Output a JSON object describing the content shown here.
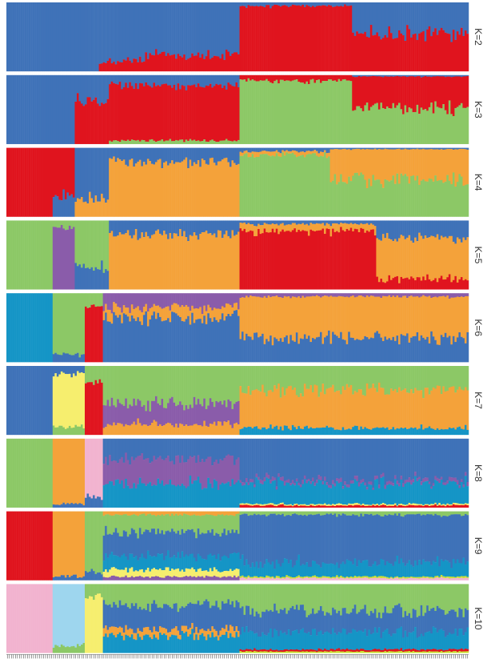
{
  "chart_data": {
    "type": "stacked-bar",
    "title": "",
    "xlabel": "",
    "ylabel": "",
    "ylim": [
      0,
      1
    ],
    "n_individuals": 230,
    "orientation": "vertical stacked bars, panels stacked top to bottom",
    "panels": [
      {
        "label": "K=2",
        "components": [
          "blue",
          "red"
        ],
        "segments": [
          {
            "from": 0,
            "to": 0.2,
            "q": [
              1.0,
              0.0
            ]
          },
          {
            "from": 0.2,
            "to": 0.3,
            "q": [
              0.85,
              0.15
            ]
          },
          {
            "from": 0.3,
            "to": 0.505,
            "q": [
              0.78,
              0.22
            ]
          },
          {
            "from": 0.505,
            "to": 0.75,
            "q": [
              0.05,
              0.95
            ]
          },
          {
            "from": 0.75,
            "to": 1.0,
            "q": [
              0.45,
              0.55
            ]
          }
        ]
      },
      {
        "label": "K=3",
        "components": [
          "blue",
          "red",
          "green"
        ],
        "segments": [
          {
            "from": 0,
            "to": 0.15,
            "q": [
              1.0,
              0.0,
              0.0
            ]
          },
          {
            "from": 0.15,
            "to": 0.22,
            "q": [
              0.35,
              0.65,
              0.0
            ]
          },
          {
            "from": 0.22,
            "to": 0.505,
            "q": [
              0.15,
              0.8,
              0.05
            ]
          },
          {
            "from": 0.505,
            "to": 0.75,
            "q": [
              0.0,
              0.08,
              0.92
            ]
          },
          {
            "from": 0.75,
            "to": 1.0,
            "q": [
              0.02,
              0.45,
              0.53
            ]
          }
        ]
      },
      {
        "label": "K=4",
        "components": [
          "red",
          "blue",
          "orange",
          "green"
        ],
        "segments": [
          {
            "from": 0,
            "to": 0.1,
            "q": [
              1.0,
              0.0,
              0.0,
              0.0
            ]
          },
          {
            "from": 0.1,
            "to": 0.15,
            "q": [
              0.7,
              0.3,
              0.0,
              0.0
            ]
          },
          {
            "from": 0.15,
            "to": 0.22,
            "q": [
              0.0,
              0.75,
              0.25,
              0.0
            ]
          },
          {
            "from": 0.22,
            "to": 0.505,
            "q": [
              0.0,
              0.2,
              0.8,
              0.0
            ]
          },
          {
            "from": 0.505,
            "to": 0.7,
            "q": [
              0.0,
              0.05,
              0.05,
              0.9
            ]
          },
          {
            "from": 0.7,
            "to": 1.0,
            "q": [
              0.0,
              0.02,
              0.45,
              0.53
            ]
          }
        ]
      },
      {
        "label": "K=5",
        "components": [
          "green",
          "purple",
          "blue",
          "orange",
          "red"
        ],
        "segments": [
          {
            "from": 0,
            "to": 0.1,
            "q": [
              1.0,
              0.0,
              0.0,
              0.0,
              0.0
            ]
          },
          {
            "from": 0.1,
            "to": 0.15,
            "q": [
              0.1,
              0.9,
              0.0,
              0.0,
              0.0
            ]
          },
          {
            "from": 0.15,
            "to": 0.22,
            "q": [
              0.7,
              0.0,
              0.3,
              0.0,
              0.0
            ]
          },
          {
            "from": 0.22,
            "to": 0.505,
            "q": [
              0.0,
              0.0,
              0.2,
              0.8,
              0.0
            ]
          },
          {
            "from": 0.505,
            "to": 0.8,
            "q": [
              0.0,
              0.0,
              0.05,
              0.1,
              0.85
            ]
          },
          {
            "from": 0.8,
            "to": 1.0,
            "q": [
              0.0,
              0.0,
              0.25,
              0.6,
              0.15
            ]
          }
        ]
      },
      {
        "label": "K=6",
        "components": [
          "teal",
          "green",
          "red",
          "purple",
          "orange",
          "blue"
        ],
        "segments": [
          {
            "from": 0,
            "to": 0.1,
            "q": [
              1.0,
              0.0,
              0.0,
              0.0,
              0.0,
              0.0
            ]
          },
          {
            "from": 0.1,
            "to": 0.17,
            "q": [
              0.0,
              0.9,
              0.0,
              0.0,
              0.0,
              0.1
            ]
          },
          {
            "from": 0.17,
            "to": 0.21,
            "q": [
              0.0,
              0.2,
              0.8,
              0.0,
              0.0,
              0.0
            ]
          },
          {
            "from": 0.21,
            "to": 0.505,
            "q": [
              0.0,
              0.0,
              0.0,
              0.2,
              0.15,
              0.65
            ]
          },
          {
            "from": 0.505,
            "to": 1.0,
            "q": [
              0.0,
              0.0,
              0.0,
              0.05,
              0.6,
              0.35
            ]
          }
        ]
      },
      {
        "label": "K=7",
        "components": [
          "blue",
          "yellow",
          "green",
          "red",
          "purple",
          "orange",
          "teal"
        ],
        "segments": [
          {
            "from": 0,
            "to": 0.1,
            "q": [
              1.0,
              0.0,
              0.0,
              0.0,
              0.0,
              0.0,
              0.0
            ]
          },
          {
            "from": 0.1,
            "to": 0.17,
            "q": [
              0.1,
              0.8,
              0.1,
              0.0,
              0.0,
              0.0,
              0.0
            ]
          },
          {
            "from": 0.17,
            "to": 0.21,
            "q": [
              0.0,
              0.0,
              0.2,
              0.8,
              0.0,
              0.0,
              0.0
            ]
          },
          {
            "from": 0.21,
            "to": 0.505,
            "q": [
              0.0,
              0.0,
              0.55,
              0.0,
              0.3,
              0.15,
              0.0
            ]
          },
          {
            "from": 0.505,
            "to": 1.0,
            "q": [
              0.0,
              0.0,
              0.35,
              0.0,
              0.0,
              0.55,
              0.1
            ]
          }
        ]
      },
      {
        "label": "K=8",
        "components": [
          "green",
          "orange",
          "pink",
          "blue",
          "purple",
          "teal",
          "yellow",
          "red"
        ],
        "segments": [
          {
            "from": 0,
            "to": 0.1,
            "q": [
              1.0,
              0.0,
              0.0,
              0.0,
              0.0,
              0.0,
              0.0,
              0.0
            ]
          },
          {
            "from": 0.1,
            "to": 0.17,
            "q": [
              0.0,
              0.95,
              0.0,
              0.05,
              0.0,
              0.0,
              0.0,
              0.0
            ]
          },
          {
            "from": 0.17,
            "to": 0.21,
            "q": [
              0.0,
              0.0,
              0.85,
              0.15,
              0.0,
              0.0,
              0.0,
              0.0
            ]
          },
          {
            "from": 0.21,
            "to": 0.505,
            "q": [
              0.0,
              0.0,
              0.0,
              0.3,
              0.35,
              0.35,
              0.0,
              0.0
            ]
          },
          {
            "from": 0.505,
            "to": 1.0,
            "q": [
              0.0,
              0.0,
              0.0,
              0.6,
              0.05,
              0.3,
              0.02,
              0.03
            ]
          }
        ]
      },
      {
        "label": "K=9",
        "components": [
          "red",
          "orange",
          "green",
          "blue",
          "teal",
          "yellow",
          "purple",
          "lime",
          "pink"
        ],
        "segments": [
          {
            "from": 0,
            "to": 0.1,
            "q": [
              1.0,
              0.0,
              0.0,
              0.0,
              0.0,
              0.0,
              0.0,
              0.0,
              0.0
            ]
          },
          {
            "from": 0.1,
            "to": 0.17,
            "q": [
              0.0,
              0.95,
              0.0,
              0.05,
              0.0,
              0.0,
              0.0,
              0.0,
              0.0
            ]
          },
          {
            "from": 0.17,
            "to": 0.21,
            "q": [
              0.0,
              0.0,
              0.9,
              0.1,
              0.0,
              0.0,
              0.0,
              0.0,
              0.0
            ]
          },
          {
            "from": 0.21,
            "to": 0.505,
            "q": [
              0.0,
              0.05,
              0.25,
              0.35,
              0.2,
              0.1,
              0.05,
              0.0,
              0.0
            ]
          },
          {
            "from": 0.505,
            "to": 1.0,
            "q": [
              0.0,
              0.0,
              0.05,
              0.7,
              0.2,
              0.0,
              0.0,
              0.02,
              0.03
            ]
          }
        ]
      },
      {
        "label": "K=10",
        "components": [
          "pink",
          "lightblue",
          "green",
          "yellow",
          "blue",
          "orange",
          "teal",
          "red",
          "purple",
          "lime"
        ],
        "segments": [
          {
            "from": 0,
            "to": 0.1,
            "q": [
              1.0,
              0.0,
              0.0,
              0.0,
              0.0,
              0.0,
              0.0,
              0.0,
              0.0,
              0.0
            ]
          },
          {
            "from": 0.1,
            "to": 0.17,
            "q": [
              0.0,
              0.9,
              0.1,
              0.0,
              0.0,
              0.0,
              0.0,
              0.0,
              0.0,
              0.0
            ]
          },
          {
            "from": 0.17,
            "to": 0.21,
            "q": [
              0.0,
              0.0,
              0.2,
              0.8,
              0.0,
              0.0,
              0.0,
              0.0,
              0.0,
              0.0
            ]
          },
          {
            "from": 0.21,
            "to": 0.505,
            "q": [
              0.0,
              0.0,
              0.3,
              0.0,
              0.35,
              0.1,
              0.25,
              0.0,
              0.0,
              0.0
            ]
          },
          {
            "from": 0.505,
            "to": 1.0,
            "q": [
              0.0,
              0.0,
              0.4,
              0.0,
              0.3,
              0.0,
              0.25,
              0.03,
              0.0,
              0.02
            ]
          }
        ]
      }
    ],
    "colors": {
      "blue": "#3F72B8",
      "red": "#E0141E",
      "green": "#8CC866",
      "orange": "#F4A23A",
      "purple": "#8A5CAA",
      "teal": "#1595C6",
      "yellow": "#F6EE6E",
      "pink": "#F2B3CF",
      "lime": "#C9E233",
      "lightblue": "#9ED6EE"
    }
  }
}
